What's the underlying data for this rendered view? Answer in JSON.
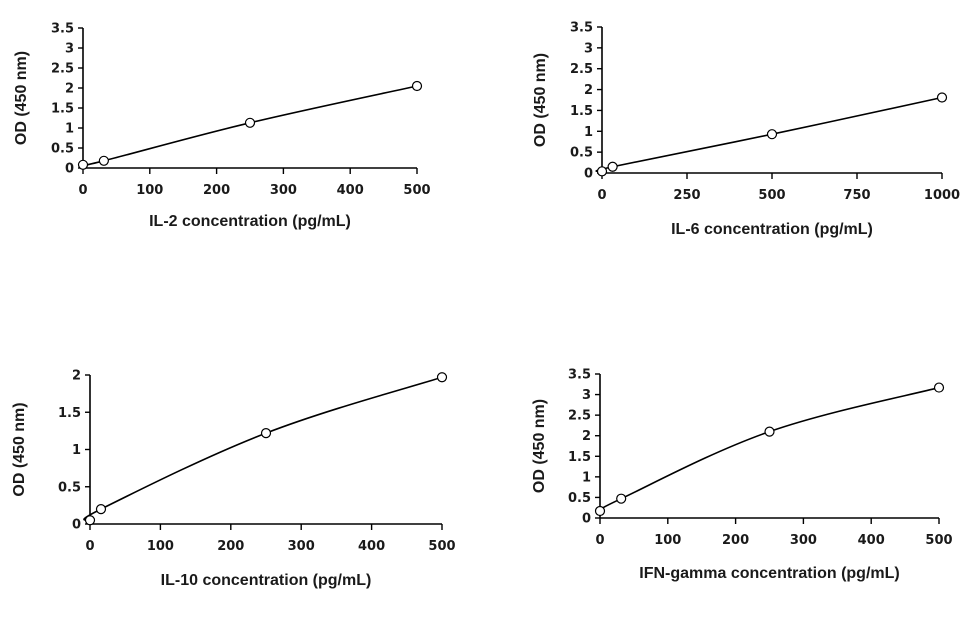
{
  "chart_data": [
    {
      "type": "line",
      "title": "",
      "xlabel": "IL-2 concentration (pg/mL)",
      "ylabel": "OD (450 nm)",
      "xlim": [
        0,
        500
      ],
      "ylim": [
        0,
        3.5
      ],
      "xticks": [
        0,
        100,
        200,
        300,
        400,
        500
      ],
      "xtick_labels": [
        "0",
        "100",
        "200",
        "300",
        "400",
        "500"
      ],
      "yticks": [
        0,
        0.5,
        1,
        1.5,
        2,
        2.5,
        3,
        3.5
      ],
      "ytick_labels": [
        "0",
        "0.5",
        "1",
        "1.5",
        "2",
        "2.5",
        "3",
        "3.5"
      ],
      "grid": false,
      "series": [
        {
          "name": "IL-2",
          "x": [
            0,
            31.25,
            250,
            500
          ],
          "y": [
            0.08,
            0.18,
            1.13,
            2.05
          ],
          "marker": "open-circle"
        }
      ]
    },
    {
      "type": "line",
      "title": "",
      "xlabel": "IL-6 concentration (pg/mL)",
      "ylabel": "OD (450 nm)",
      "xlim": [
        0,
        1000
      ],
      "ylim": [
        0,
        3.5
      ],
      "xticks": [
        0,
        250,
        500,
        750,
        1000
      ],
      "xtick_labels": [
        "0",
        "250",
        "500",
        "750",
        "1000"
      ],
      "yticks": [
        0,
        0.5,
        1,
        1.5,
        2,
        2.5,
        3,
        3.5
      ],
      "ytick_labels": [
        "0",
        "0.5",
        "1",
        "1.5",
        "2",
        "2.5",
        "3",
        "3.5"
      ],
      "grid": false,
      "series": [
        {
          "name": "IL-6",
          "x": [
            0,
            31.25,
            500,
            1000
          ],
          "y": [
            0.04,
            0.15,
            0.93,
            1.81
          ],
          "marker": "open-circle"
        }
      ]
    },
    {
      "type": "line",
      "title": "",
      "xlabel": "IL-10 concentration (pg/mL)",
      "ylabel": "OD (450 nm)",
      "xlim": [
        0,
        500
      ],
      "ylim": [
        0,
        2
      ],
      "xticks": [
        0,
        100,
        200,
        300,
        400,
        500
      ],
      "xtick_labels": [
        "0",
        "100",
        "200",
        "300",
        "400",
        "500"
      ],
      "yticks": [
        0,
        0.5,
        1,
        1.5,
        2
      ],
      "ytick_labels": [
        "0",
        "0.5",
        "1",
        "1.5",
        "2"
      ],
      "grid": false,
      "series": [
        {
          "name": "IL-10",
          "x": [
            0,
            15.6,
            250,
            500
          ],
          "y": [
            0.05,
            0.2,
            1.22,
            1.97
          ],
          "marker": "open-circle"
        }
      ]
    },
    {
      "type": "line",
      "title": "",
      "xlabel": "IFN-gamma concentration (pg/mL)",
      "ylabel": "OD (450 nm)",
      "xlim": [
        0,
        500
      ],
      "ylim": [
        0,
        3.5
      ],
      "xticks": [
        0,
        100,
        200,
        300,
        400,
        500
      ],
      "xtick_labels": [
        "0",
        "100",
        "200",
        "300",
        "400",
        "500"
      ],
      "yticks": [
        0,
        0.5,
        1,
        1.5,
        2,
        2.5,
        3,
        3.5
      ],
      "ytick_labels": [
        "0",
        "0.5",
        "1",
        "1.5",
        "2",
        "2.5",
        "3",
        "3.5"
      ],
      "grid": false,
      "series": [
        {
          "name": "IFN-gamma",
          "x": [
            0,
            31.25,
            250,
            500
          ],
          "y": [
            0.17,
            0.47,
            2.1,
            3.17
          ],
          "marker": "open-circle"
        }
      ]
    }
  ]
}
